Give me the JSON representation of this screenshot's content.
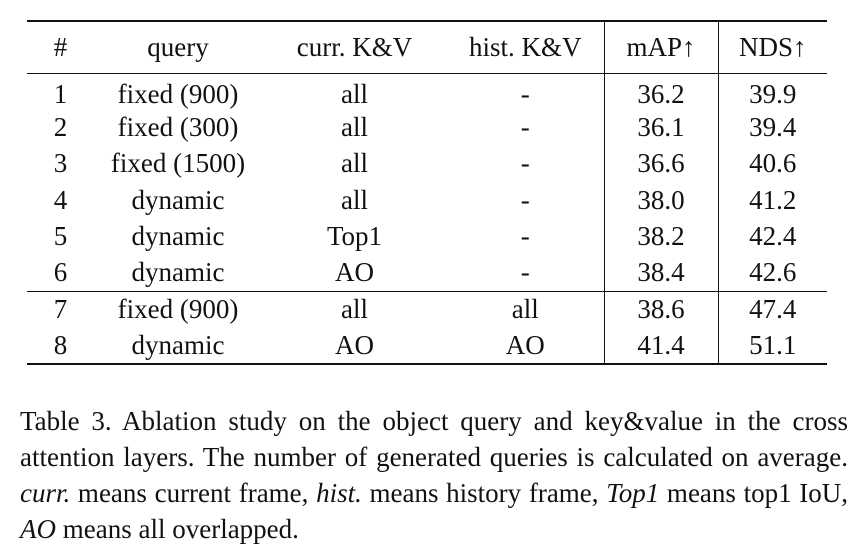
{
  "table": {
    "headers": [
      "#",
      "query",
      "curr. K&V",
      "hist. K&V",
      "mAP↑",
      "NDS↑"
    ],
    "rows": [
      [
        "1",
        "fixed (900)",
        "all",
        "-",
        "36.2",
        "39.9"
      ],
      [
        "2",
        "fixed (300)",
        "all",
        "-",
        "36.1",
        "39.4"
      ],
      [
        "3",
        "fixed (1500)",
        "all",
        "-",
        "36.6",
        "40.6"
      ],
      [
        "4",
        "dynamic",
        "all",
        "-",
        "38.0",
        "41.2"
      ],
      [
        "5",
        "dynamic",
        "Top1",
        "-",
        "38.2",
        "42.4"
      ],
      [
        "6",
        "dynamic",
        "AO",
        "-",
        "38.4",
        "42.6"
      ],
      [
        "7",
        "fixed (900)",
        "all",
        "all",
        "38.6",
        "47.4"
      ],
      [
        "8",
        "dynamic",
        "AO",
        "AO",
        "41.4",
        "51.1"
      ]
    ]
  },
  "caption": {
    "p1": "Table 3.  Ablation study on the object query and key&value in the cross attention layers. The number of generated queries is calculated on average. ",
    "curr_term": "curr.",
    "p2": " means current frame, ",
    "hist_term": "hist.",
    "p3": " means history frame, ",
    "top1_term": "Top1",
    "p4": " means top1 IoU, ",
    "ao_term": "AO",
    "p5": " means all overlapped."
  }
}
